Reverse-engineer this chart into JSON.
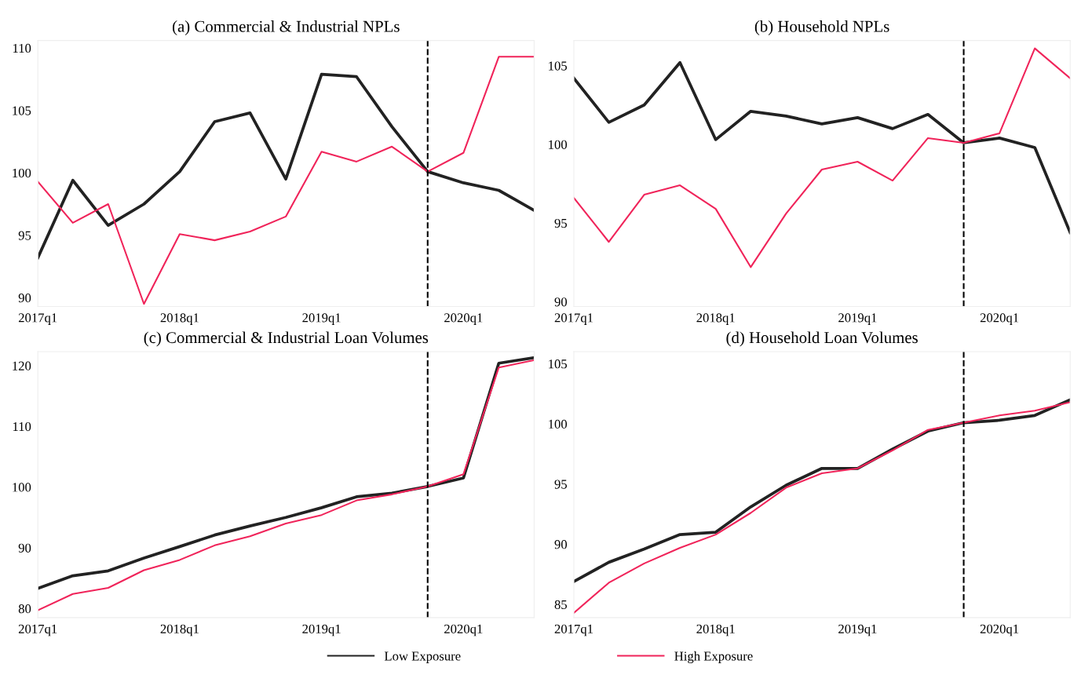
{
  "chart_data": [
    {
      "type": "line",
      "title": "(a) Commercial & Industrial NPLs",
      "x": [
        "2017-01",
        "2017-04",
        "2017-07",
        "2017-10",
        "2018-01",
        "2018-04",
        "2018-07",
        "2018-10",
        "2019-01",
        "2019-04",
        "2019-07",
        "2019-10",
        "2020-01",
        "2020-04",
        "2020-07"
      ],
      "xlim": [
        "2017-01",
        "2020-07"
      ],
      "xticks": [
        {
          "value": "2017-01",
          "label": "2017q1"
        },
        {
          "value": "2018-01",
          "label": "2018q1"
        },
        {
          "value": "2019-01",
          "label": "2019q1"
        },
        {
          "value": "2020-01",
          "label": "2020q1"
        }
      ],
      "ylim": [
        89.3,
        110.6
      ],
      "yticks": [
        90,
        95,
        100,
        105,
        110
      ],
      "legend": "bottom",
      "ref_lines": [
        {
          "axis": "x",
          "value": "2019-10",
          "color": "#000000",
          "line_style": "dashed"
        }
      ],
      "series": [
        {
          "name": "Low Exposure",
          "color": "#222222",
          "values": [
            93.2,
            99.4,
            95.8,
            97.5,
            100.1,
            104.1,
            104.8,
            99.5,
            107.9,
            107.7,
            103.7,
            100.1,
            99.2,
            98.6,
            97.0
          ]
        },
        {
          "name": "High Exposure",
          "color": "#f0245a",
          "values": [
            99.3,
            96.0,
            97.5,
            89.5,
            95.1,
            94.6,
            95.3,
            96.5,
            101.7,
            100.9,
            102.1,
            100.1,
            101.6,
            109.3,
            109.3
          ]
        }
      ]
    },
    {
      "type": "line",
      "title": "(b) Household NPLs",
      "x": [
        "2017-01",
        "2017-04",
        "2017-07",
        "2017-10",
        "2018-01",
        "2018-04",
        "2018-07",
        "2018-10",
        "2019-01",
        "2019-04",
        "2019-07",
        "2019-10",
        "2020-01",
        "2020-04",
        "2020-07"
      ],
      "xlim": [
        "2017-01",
        "2020-07"
      ],
      "xticks": [
        {
          "value": "2017-01",
          "label": "2017q1"
        },
        {
          "value": "2018-01",
          "label": "2018q1"
        },
        {
          "value": "2019-01",
          "label": "2019q1"
        },
        {
          "value": "2020-01",
          "label": "2020q1"
        }
      ],
      "ylim": [
        89.7,
        106.6
      ],
      "yticks": [
        90,
        95,
        100,
        105
      ],
      "legend": "bottom",
      "ref_lines": [
        {
          "axis": "x",
          "value": "2019-10",
          "color": "#000000",
          "line_style": "dashed"
        }
      ],
      "series": [
        {
          "name": "Low Exposure",
          "color": "#222222",
          "values": [
            104.2,
            101.4,
            102.5,
            105.2,
            100.3,
            102.1,
            101.8,
            101.3,
            101.7,
            101.0,
            101.9,
            100.1,
            100.4,
            99.8,
            94.4
          ]
        },
        {
          "name": "High Exposure",
          "color": "#f0245a",
          "values": [
            96.6,
            93.8,
            96.8,
            97.4,
            95.9,
            92.2,
            95.6,
            98.4,
            98.9,
            97.7,
            100.4,
            100.1,
            100.7,
            106.1,
            104.2
          ]
        }
      ]
    },
    {
      "type": "line",
      "title": "(c) Commercial & Industrial Loan Volumes",
      "x": [
        "2017-01",
        "2017-04",
        "2017-07",
        "2017-10",
        "2018-01",
        "2018-04",
        "2018-07",
        "2018-10",
        "2019-01",
        "2019-04",
        "2019-07",
        "2019-10",
        "2020-01",
        "2020-04",
        "2020-07"
      ],
      "xlim": [
        "2017-01",
        "2020-07"
      ],
      "xticks": [
        {
          "value": "2017-01",
          "label": "2017q1"
        },
        {
          "value": "2018-01",
          "label": "2018q1"
        },
        {
          "value": "2019-01",
          "label": "2019q1"
        },
        {
          "value": "2020-01",
          "label": "2020q1"
        }
      ],
      "ylim": [
        78.5,
        122.3
      ],
      "yticks": [
        80,
        90,
        100,
        110,
        120
      ],
      "legend": "bottom",
      "ref_lines": [
        {
          "axis": "x",
          "value": "2019-10",
          "color": "#000000",
          "line_style": "dashed"
        }
      ],
      "series": [
        {
          "name": "Low Exposure",
          "color": "#222222",
          "values": [
            83.3,
            85.4,
            86.2,
            88.3,
            90.2,
            92.1,
            93.6,
            95.0,
            96.6,
            98.4,
            99.0,
            100.1,
            101.5,
            120.4,
            121.3
          ]
        },
        {
          "name": "High Exposure",
          "color": "#f0245a",
          "values": [
            79.7,
            82.4,
            83.4,
            86.3,
            88.0,
            90.4,
            91.9,
            94.0,
            95.4,
            97.8,
            98.8,
            100.1,
            102.1,
            119.7,
            120.9
          ]
        }
      ]
    },
    {
      "type": "line",
      "title": "(d) Household Loan Volumes",
      "x": [
        "2017-01",
        "2017-04",
        "2017-07",
        "2017-10",
        "2018-01",
        "2018-04",
        "2018-07",
        "2018-10",
        "2019-01",
        "2019-04",
        "2019-07",
        "2019-10",
        "2020-01",
        "2020-04",
        "2020-07"
      ],
      "xlim": [
        "2017-01",
        "2020-07"
      ],
      "xticks": [
        {
          "value": "2017-01",
          "label": "2017q1"
        },
        {
          "value": "2018-01",
          "label": "2018q1"
        },
        {
          "value": "2019-01",
          "label": "2019q1"
        },
        {
          "value": "2020-01",
          "label": "2020q1"
        }
      ],
      "ylim": [
        83.9,
        106.0
      ],
      "yticks": [
        85,
        90,
        95,
        100,
        105
      ],
      "legend": "bottom",
      "ref_lines": [
        {
          "axis": "x",
          "value": "2019-10",
          "color": "#000000",
          "line_style": "dashed"
        }
      ],
      "series": [
        {
          "name": "Low Exposure",
          "color": "#222222",
          "values": [
            86.9,
            88.5,
            89.6,
            90.8,
            91.0,
            93.1,
            94.9,
            96.3,
            96.3,
            97.9,
            99.4,
            100.1,
            100.3,
            100.7,
            102.0
          ]
        },
        {
          "name": "High Exposure",
          "color": "#f0245a",
          "values": [
            84.3,
            86.8,
            88.4,
            89.7,
            90.8,
            92.6,
            94.7,
            95.9,
            96.3,
            97.8,
            99.5,
            100.1,
            100.7,
            101.1,
            101.8
          ]
        }
      ]
    }
  ]
}
